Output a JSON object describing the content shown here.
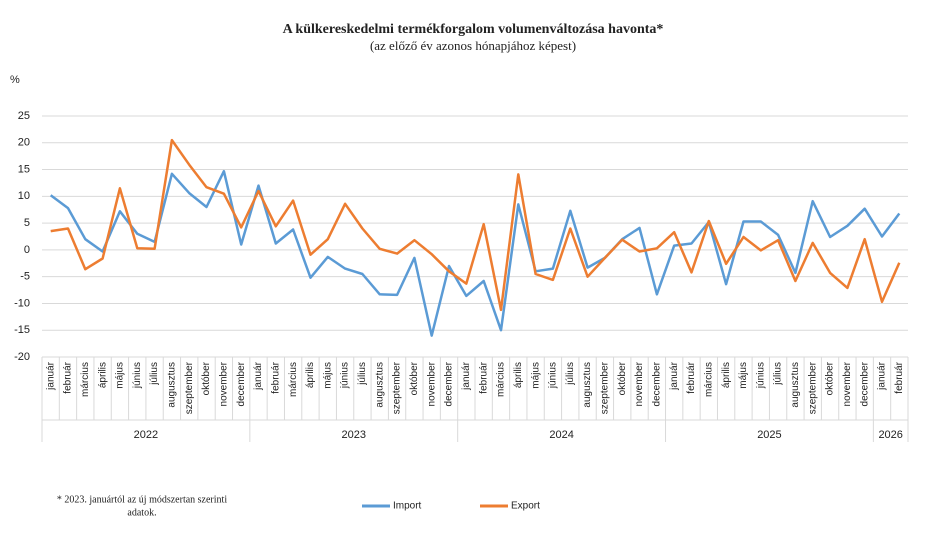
{
  "chart_data": {
    "type": "line",
    "title": "A külkereskedelmi termékforgalom  volumenváltozása havonta*",
    "subtitle": "(az előző év azonos hónapjához képest)",
    "y_label": "%",
    "footnote": [
      "* 2023. januártól az új módszertan szerinti",
      "adatok."
    ],
    "categories": [
      "január",
      "február",
      "március",
      "április",
      "május",
      "június",
      "július",
      "augusztus",
      "szeptember",
      "október",
      "november",
      "december",
      "január",
      "február",
      "március",
      "április",
      "május",
      "június",
      "július",
      "augusztus",
      "szeptember",
      "október",
      "november",
      "december",
      "január",
      "február",
      "március",
      "április",
      "május",
      "június",
      "július",
      "augusztus",
      "szeptember",
      "október",
      "november",
      "december",
      "január",
      "február",
      "március",
      "április",
      "május",
      "június",
      "július",
      "augusztus",
      "szeptember",
      "október",
      "november",
      "december",
      "január",
      "február"
    ],
    "years": [
      "2022",
      "2023",
      "2024",
      "2025",
      "2026"
    ],
    "series": [
      {
        "name": "Import",
        "color": "#5b9bd5",
        "values": [
          10.2,
          7.8,
          2.0,
          -0.3,
          7.2,
          3.0,
          1.5,
          14.2,
          10.6,
          8.0,
          14.7,
          1.0,
          12.0,
          1.2,
          3.8,
          -5.2,
          -1.3,
          -3.5,
          -4.5,
          -8.3,
          -8.4,
          -1.5,
          -16.0,
          -3.0,
          -8.6,
          -5.8,
          -15.0,
          8.5,
          -4.0,
          -3.5,
          7.3,
          -3.3,
          -1.5,
          2.0,
          4.1,
          -8.3,
          0.8,
          1.2,
          5.2,
          -6.4,
          5.3,
          5.3,
          2.8,
          -4.3,
          9.1,
          2.4,
          4.5,
          7.7,
          2.5,
          6.8
        ]
      },
      {
        "name": "Export",
        "color": "#ed7d31",
        "values": [
          3.5,
          4.0,
          -3.6,
          -1.6,
          11.5,
          0.3,
          0.2,
          20.5,
          15.9,
          11.7,
          10.5,
          4.2,
          11.0,
          4.4,
          9.2,
          -0.9,
          2.0,
          8.6,
          4.0,
          0.2,
          -0.7,
          1.8,
          -0.8,
          -4.0,
          -6.3,
          4.8,
          -11.2,
          14.1,
          -4.5,
          -5.6,
          4.0,
          -5.0,
          -1.5,
          1.9,
          -0.3,
          0.3,
          3.3,
          -4.2,
          5.4,
          -2.6,
          2.4,
          -0.1,
          1.8,
          -5.8,
          1.3,
          -4.3,
          -7.1,
          2.0,
          -9.7,
          -2.4
        ]
      }
    ],
    "ylim": [
      -20,
      25
    ],
    "yticks": [
      -20,
      -15,
      -10,
      -5,
      0,
      5,
      10,
      15,
      20,
      25
    ],
    "grid": true,
    "legend": "bottom"
  }
}
